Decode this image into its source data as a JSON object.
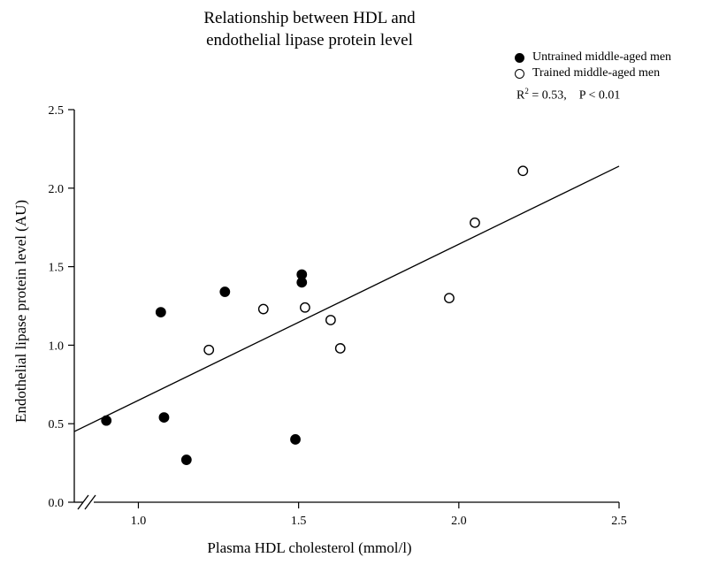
{
  "chart_data": {
    "type": "scatter",
    "title_line1": "Relationship between HDL and",
    "title_line2": "endothelial lipase protein level",
    "xlabel": "Plasma HDL cholesterol (mmol/l)",
    "ylabel": "Endothelial lipase protein level (AU)",
    "xlim": [
      0.8,
      2.5
    ],
    "ylim": [
      0.0,
      2.5
    ],
    "x_ticks": [
      "1.0",
      "1.5",
      "2.0",
      "2.5"
    ],
    "y_ticks": [
      "0.0",
      "0.5",
      "1.0",
      "1.5",
      "2.0",
      "2.5"
    ],
    "legend_position": "top-right",
    "series": [
      {
        "name": "Untrained middle-aged men",
        "marker": "filled-circle",
        "x": [
          0.9,
          1.07,
          1.08,
          1.15,
          1.27,
          1.49,
          1.51,
          1.51
        ],
        "y": [
          0.52,
          1.21,
          0.54,
          0.27,
          1.34,
          0.4,
          1.4,
          1.45
        ]
      },
      {
        "name": "Trained middle-aged men",
        "marker": "open-circle",
        "x": [
          1.22,
          1.39,
          1.52,
          1.6,
          1.63,
          1.97,
          2.05,
          2.2
        ],
        "y": [
          0.97,
          1.23,
          1.24,
          1.16,
          0.98,
          1.3,
          1.78,
          2.11
        ]
      }
    ],
    "regression_line": {
      "x": [
        0.8,
        2.5
      ],
      "y": [
        0.45,
        2.14
      ]
    },
    "stat_r": "R",
    "stat_sup": "2",
    "stat_rest": " = 0.53,    P < 0.01",
    "axis_break": true
  }
}
